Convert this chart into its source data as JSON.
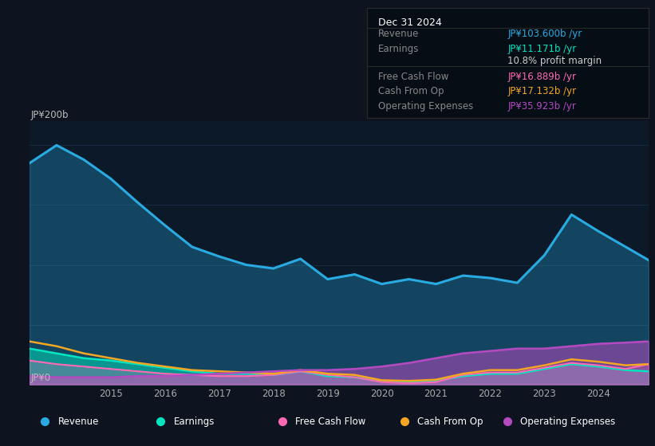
{
  "bg_color": "#0d1420",
  "plot_bg_color": "#0b1929",
  "grid_color": "#1a2d45",
  "years": [
    2013.5,
    2014.0,
    2014.5,
    2015.0,
    2015.5,
    2016.0,
    2016.5,
    2017.0,
    2017.5,
    2018.0,
    2018.5,
    2019.0,
    2019.5,
    2020.0,
    2020.5,
    2021.0,
    2021.5,
    2022.0,
    2022.5,
    2023.0,
    2023.5,
    2024.0,
    2024.5,
    2024.92
  ],
  "revenue": [
    185,
    200,
    188,
    172,
    152,
    133,
    115,
    107,
    100,
    97,
    105,
    88,
    92,
    84,
    88,
    84,
    91,
    89,
    85,
    108,
    142,
    128,
    115,
    104
  ],
  "earnings": [
    30,
    26,
    22,
    20,
    17,
    14,
    11,
    9,
    9,
    8,
    11,
    7,
    6,
    2.5,
    2,
    3,
    7,
    9,
    9,
    13,
    17,
    15,
    12,
    11
  ],
  "free_cash_flow": [
    20,
    17,
    15,
    13,
    11,
    9,
    8,
    7,
    7,
    8,
    11,
    8,
    6,
    2,
    1,
    2,
    8,
    10,
    10,
    14,
    18,
    16,
    13,
    17
  ],
  "cash_from_op": [
    36,
    32,
    26,
    22,
    18,
    15,
    12,
    11,
    10,
    9,
    12,
    9,
    8,
    3.5,
    3,
    4,
    9,
    12,
    12,
    16,
    21,
    19,
    16,
    17
  ],
  "operating_expenses": [
    7,
    6,
    6,
    6,
    7,
    7,
    8,
    9,
    10,
    11,
    12,
    12,
    13,
    15,
    18,
    22,
    26,
    28,
    30,
    30,
    32,
    34,
    35,
    36
  ],
  "revenue_color": "#29abe2",
  "earnings_color": "#00e5c0",
  "free_cash_flow_color": "#ff69b4",
  "cash_from_op_color": "#f5a623",
  "operating_expenses_color": "#b44ac0",
  "ylim": [
    0,
    220
  ],
  "ylabel_top": "JP¥200b",
  "ylabel_zero": "JP¥0",
  "xticks": [
    2015,
    2016,
    2017,
    2018,
    2019,
    2020,
    2021,
    2022,
    2023,
    2024
  ],
  "info_box": {
    "date": "Dec 31 2024",
    "rows": [
      {
        "label": "Revenue",
        "value": "JP¥103.600b /yr",
        "value_color": "#29abe2",
        "label_color": "#888888",
        "divider_above": false
      },
      {
        "label": "Earnings",
        "value": "JP¥11.171b /yr",
        "value_color": "#00e5c0",
        "label_color": "#888888",
        "divider_above": false
      },
      {
        "label": "",
        "value": "10.8% profit margin",
        "value_color": "#cccccc",
        "label_color": "",
        "divider_above": false
      },
      {
        "label": "Free Cash Flow",
        "value": "JP¥16.889b /yr",
        "value_color": "#ff69b4",
        "label_color": "#888888",
        "divider_above": true
      },
      {
        "label": "Cash From Op",
        "value": "JP¥17.132b /yr",
        "value_color": "#f5a623",
        "label_color": "#888888",
        "divider_above": false
      },
      {
        "label": "Operating Expenses",
        "value": "JP¥35.923b /yr",
        "value_color": "#b44ac0",
        "label_color": "#888888",
        "divider_above": false
      }
    ]
  },
  "legend_items": [
    {
      "label": "Revenue",
      "color": "#29abe2"
    },
    {
      "label": "Earnings",
      "color": "#00e5c0"
    },
    {
      "label": "Free Cash Flow",
      "color": "#ff69b4"
    },
    {
      "label": "Cash From Op",
      "color": "#f5a623"
    },
    {
      "label": "Operating Expenses",
      "color": "#b44ac0"
    }
  ]
}
